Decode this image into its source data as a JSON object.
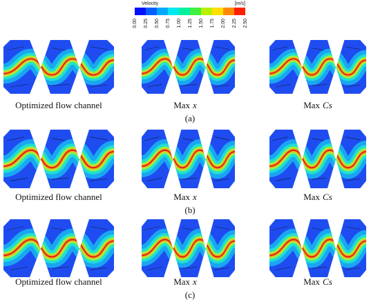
{
  "colorbar": {
    "title": "Velocity",
    "unit": "[m/s]",
    "ticks": [
      "0.00",
      "0.25",
      "0.50",
      "0.75",
      "1.00",
      "1.25",
      "1.50",
      "1.75",
      "2.00",
      "2.25",
      "2.50"
    ]
  },
  "rows": [
    {
      "label": "(a)",
      "panels": [
        {
          "caption": "Optimized flow channel"
        },
        {
          "caption": "Max",
          "caption_var": "x"
        },
        {
          "caption": "Max",
          "caption_var": "Cs"
        }
      ]
    },
    {
      "label": "(b)",
      "panels": [
        {
          "caption": "Optimized flow channel"
        },
        {
          "caption": "Max",
          "caption_var": "x"
        },
        {
          "caption": "Max",
          "caption_var": "Cs"
        }
      ]
    },
    {
      "label": "(c)",
      "panels": [
        {
          "caption": "Optimized flow channel"
        },
        {
          "caption": "Max",
          "caption_var": "x"
        },
        {
          "caption": "Max",
          "caption_var": "Cs"
        }
      ]
    }
  ]
}
